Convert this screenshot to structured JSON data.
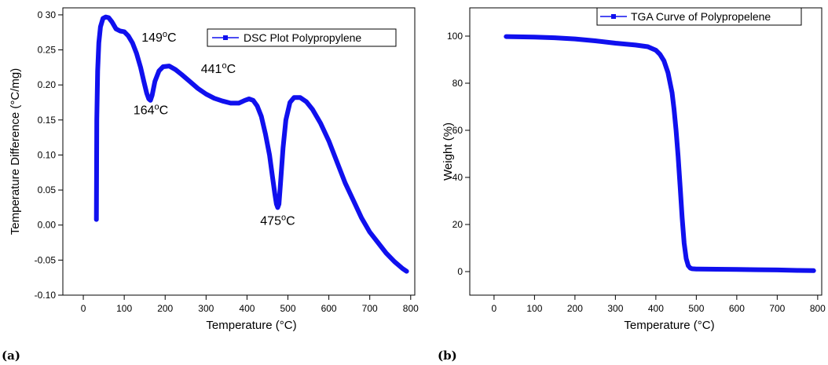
{
  "chart_data": [
    {
      "type": "line",
      "panel_label": "(a)",
      "xlabel": "Temperature (°C)",
      "ylabel": "Temperature Difference (°C/mg)",
      "xlim": [
        -50,
        810
      ],
      "ylim": [
        -0.1,
        0.31
      ],
      "x_ticks": [
        0,
        100,
        200,
        300,
        400,
        500,
        600,
        700,
        800
      ],
      "y_ticks": [
        -0.1,
        -0.05,
        0.0,
        0.05,
        0.1,
        0.15,
        0.2,
        0.25,
        0.3
      ],
      "y_tick_labels": [
        "-0.10",
        "-0.05",
        "0.00",
        "0.05",
        "0.10",
        "0.15",
        "0.20",
        "0.25",
        "0 30"
      ],
      "legend": {
        "position": "top-right"
      },
      "color": "#1010ee",
      "series": [
        {
          "name": "DSC Plot Polypropylene",
          "x": [
            32,
            33,
            35,
            38,
            42,
            48,
            55,
            62,
            70,
            80,
            90,
            100,
            110,
            120,
            130,
            140,
            148,
            155,
            160,
            164,
            168,
            175,
            185,
            195,
            210,
            225,
            240,
            260,
            280,
            300,
            320,
            340,
            360,
            380,
            395,
            405,
            415,
            425,
            435,
            445,
            455,
            462,
            468,
            472,
            475,
            478,
            482,
            488,
            495,
            505,
            515,
            530,
            545,
            560,
            580,
            600,
            620,
            640,
            660,
            680,
            700,
            720,
            740,
            760,
            780,
            790
          ],
          "y": [
            0.008,
            0.15,
            0.22,
            0.26,
            0.283,
            0.295,
            0.297,
            0.296,
            0.29,
            0.28,
            0.277,
            0.276,
            0.27,
            0.26,
            0.245,
            0.225,
            0.205,
            0.188,
            0.18,
            0.178,
            0.185,
            0.205,
            0.22,
            0.226,
            0.227,
            0.222,
            0.215,
            0.205,
            0.195,
            0.187,
            0.181,
            0.177,
            0.174,
            0.174,
            0.178,
            0.18,
            0.178,
            0.17,
            0.155,
            0.13,
            0.1,
            0.07,
            0.045,
            0.03,
            0.025,
            0.03,
            0.06,
            0.11,
            0.15,
            0.175,
            0.182,
            0.182,
            0.176,
            0.165,
            0.145,
            0.12,
            0.09,
            0.06,
            0.035,
            0.01,
            -0.01,
            -0.025,
            -0.04,
            -0.052,
            -0.062,
            -0.066
          ]
        }
      ],
      "annotations": [
        {
          "base": "149",
          "sup": "o",
          "unit": "C",
          "x": 185,
          "y": 0.262
        },
        {
          "base": "164",
          "sup": "o",
          "unit": "C",
          "x": 165,
          "y": 0.158
        },
        {
          "base": "441",
          "sup": "o",
          "unit": "C",
          "x": 330,
          "y": 0.217
        },
        {
          "base": "475",
          "sup": "o",
          "unit": "C",
          "x": 475,
          "y": 0.0
        }
      ]
    },
    {
      "type": "line",
      "panel_label": "(b)",
      "xlabel": "Temperature (°C)",
      "ylabel": "Weight (%)",
      "xlim": [
        -60,
        810
      ],
      "ylim": [
        -10,
        112
      ],
      "x_ticks": [
        0,
        100,
        200,
        300,
        400,
        500,
        600,
        700,
        800
      ],
      "y_ticks": [
        0,
        20,
        40,
        60,
        80,
        100
      ],
      "y_tick_labels": [
        "0",
        "20",
        "40",
        "60",
        "80",
        "100"
      ],
      "legend": {
        "position": "top-right"
      },
      "color": "#1010ee",
      "series": [
        {
          "name": "TGA Curve of Polypropelene",
          "x": [
            30,
            100,
            150,
            200,
            250,
            300,
            350,
            380,
            400,
            410,
            420,
            430,
            440,
            445,
            450,
            455,
            460,
            465,
            470,
            475,
            480,
            485,
            490,
            500,
            550,
            600,
            650,
            700,
            750,
            790
          ],
          "y": [
            99.8,
            99.6,
            99.3,
            98.8,
            98.0,
            97.0,
            96.2,
            95.5,
            94.0,
            92.3,
            89.5,
            84.5,
            76.0,
            69.0,
            60.0,
            49.0,
            36.0,
            23.0,
            12.0,
            5.5,
            2.5,
            1.5,
            1.2,
            1.1,
            1.0,
            0.9,
            0.8,
            0.7,
            0.5,
            0.4
          ]
        }
      ],
      "annotations": []
    }
  ]
}
